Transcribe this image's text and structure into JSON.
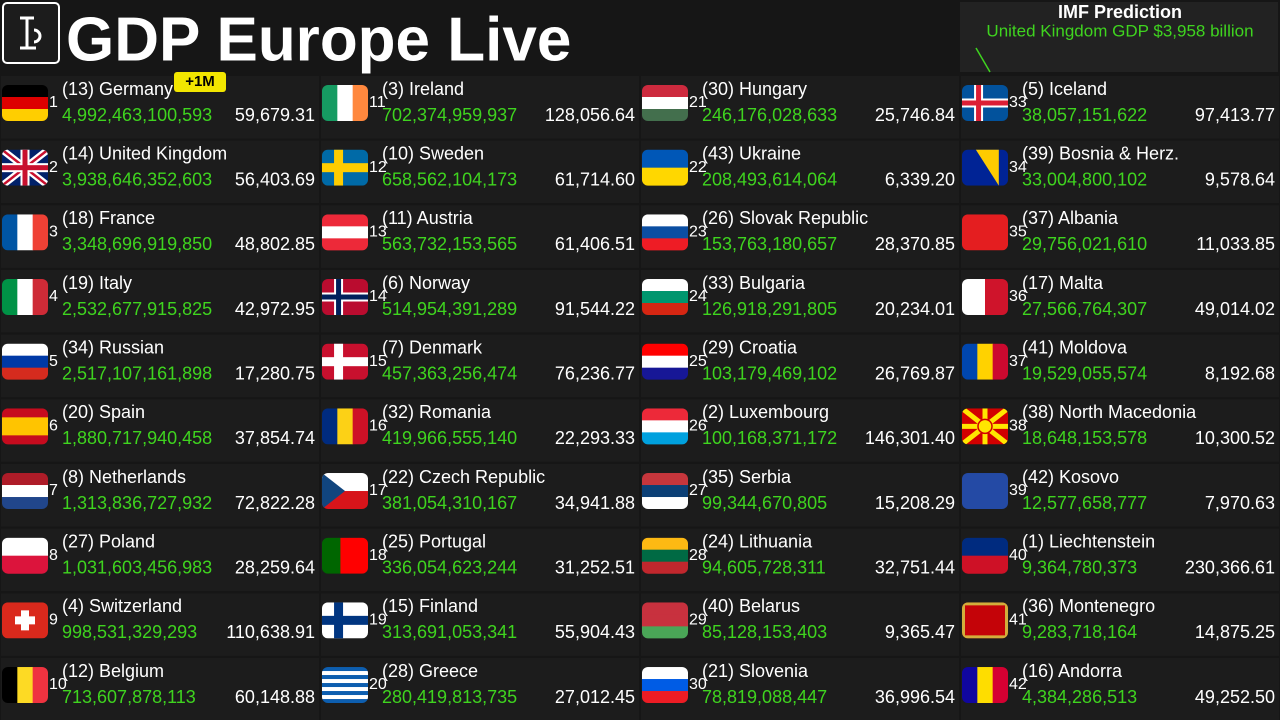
{
  "header": {
    "title": "GDP Europe Live",
    "prediction_title": "IMF Prediction",
    "prediction_text": "United Kingdom GDP $3,958 billion",
    "badge": "+1M"
  },
  "entries": [
    {
      "rank": 1,
      "name": "(13) Germany",
      "gdp": "4,992,463,100,593",
      "per_capita": "59,679.31"
    },
    {
      "rank": 2,
      "name": "(14) United Kingdom",
      "gdp": "3,938,646,352,603",
      "per_capita": "56,403.69"
    },
    {
      "rank": 3,
      "name": "(18) France",
      "gdp": "3,348,696,919,850",
      "per_capita": "48,802.85"
    },
    {
      "rank": 4,
      "name": "(19) Italy",
      "gdp": "2,532,677,915,825",
      "per_capita": "42,972.95"
    },
    {
      "rank": 5,
      "name": "(34) Russian",
      "gdp": "2,517,107,161,898",
      "per_capita": "17,280.75"
    },
    {
      "rank": 6,
      "name": "(20) Spain",
      "gdp": "1,880,717,940,458",
      "per_capita": "37,854.74"
    },
    {
      "rank": 7,
      "name": "(8) Netherlands",
      "gdp": "1,313,836,727,932",
      "per_capita": "72,822.28"
    },
    {
      "rank": 8,
      "name": "(27) Poland",
      "gdp": "1,031,603,456,983",
      "per_capita": "28,259.64"
    },
    {
      "rank": 9,
      "name": "(4) Switzerland",
      "gdp": "998,531,329,293",
      "per_capita": "110,638.91"
    },
    {
      "rank": 10,
      "name": "(12) Belgium",
      "gdp": "713,607,878,113",
      "per_capita": "60,148.88"
    },
    {
      "rank": 11,
      "name": "(3) Ireland",
      "gdp": "702,374,959,937",
      "per_capita": "128,056.64"
    },
    {
      "rank": 12,
      "name": "(10) Sweden",
      "gdp": "658,562,104,173",
      "per_capita": "61,714.60"
    },
    {
      "rank": 13,
      "name": "(11) Austria",
      "gdp": "563,732,153,565",
      "per_capita": "61,406.51"
    },
    {
      "rank": 14,
      "name": "(6) Norway",
      "gdp": "514,954,391,289",
      "per_capita": "91,544.22"
    },
    {
      "rank": 15,
      "name": "(7) Denmark",
      "gdp": "457,363,256,474",
      "per_capita": "76,236.77"
    },
    {
      "rank": 16,
      "name": "(32) Romania",
      "gdp": "419,966,555,140",
      "per_capita": "22,293.33"
    },
    {
      "rank": 17,
      "name": "(22) Czech Republic",
      "gdp": "381,054,310,167",
      "per_capita": "34,941.88"
    },
    {
      "rank": 18,
      "name": "(25) Portugal",
      "gdp": "336,054,623,244",
      "per_capita": "31,252.51"
    },
    {
      "rank": 19,
      "name": "(15) Finland",
      "gdp": "313,691,053,341",
      "per_capita": "55,904.43"
    },
    {
      "rank": 20,
      "name": "(28) Greece",
      "gdp": "280,419,813,735",
      "per_capita": "27,012.45"
    },
    {
      "rank": 21,
      "name": "(30) Hungary",
      "gdp": "246,176,028,633",
      "per_capita": "25,746.84"
    },
    {
      "rank": 22,
      "name": "(43) Ukraine",
      "gdp": "208,493,614,064",
      "per_capita": "6,339.20"
    },
    {
      "rank": 23,
      "name": "(26) Slovak Republic",
      "gdp": "153,763,180,657",
      "per_capita": "28,370.85"
    },
    {
      "rank": 24,
      "name": "(33) Bulgaria",
      "gdp": "126,918,291,805",
      "per_capita": "20,234.01"
    },
    {
      "rank": 25,
      "name": "(29) Croatia",
      "gdp": "103,179,469,102",
      "per_capita": "26,769.87"
    },
    {
      "rank": 26,
      "name": "(2) Luxembourg",
      "gdp": "100,168,371,172",
      "per_capita": "146,301.40"
    },
    {
      "rank": 27,
      "name": "(35) Serbia",
      "gdp": "99,344,670,805",
      "per_capita": "15,208.29"
    },
    {
      "rank": 28,
      "name": "(24) Lithuania",
      "gdp": "94,605,728,311",
      "per_capita": "32,751.44"
    },
    {
      "rank": 29,
      "name": "(40) Belarus",
      "gdp": "85,128,153,403",
      "per_capita": "9,365.47"
    },
    {
      "rank": 30,
      "name": "(21) Slovenia",
      "gdp": "78,819,088,447",
      "per_capita": "36,996.54"
    },
    {
      "rank": 33,
      "name": "(5) Iceland",
      "gdp": "38,057,151,622",
      "per_capita": "97,413.77"
    },
    {
      "rank": 34,
      "name": "(39) Bosnia & Herz.",
      "gdp": "33,004,800,102",
      "per_capita": "9,578.64"
    },
    {
      "rank": 35,
      "name": "(37) Albania",
      "gdp": "29,756,021,610",
      "per_capita": "11,033.85"
    },
    {
      "rank": 36,
      "name": "(17) Malta",
      "gdp": "27,566,764,307",
      "per_capita": "49,014.02"
    },
    {
      "rank": 37,
      "name": "(41) Moldova",
      "gdp": "19,529,055,574",
      "per_capita": "8,192.68"
    },
    {
      "rank": 38,
      "name": "(38) North Macedonia",
      "gdp": "18,648,153,578",
      "per_capita": "10,300.52"
    },
    {
      "rank": 39,
      "name": "(42) Kosovo",
      "gdp": "12,577,658,777",
      "per_capita": "7,970.63"
    },
    {
      "rank": 40,
      "name": "(1) Liechtenstein",
      "gdp": "9,364,780,373",
      "per_capita": "230,366.61"
    },
    {
      "rank": 41,
      "name": "(36) Montenegro",
      "gdp": "9,283,718,164",
      "per_capita": "14,875.25"
    },
    {
      "rank": 42,
      "name": "(16) Andorra",
      "gdp": "4,384,286,513",
      "per_capita": "49,252.50"
    }
  ]
}
